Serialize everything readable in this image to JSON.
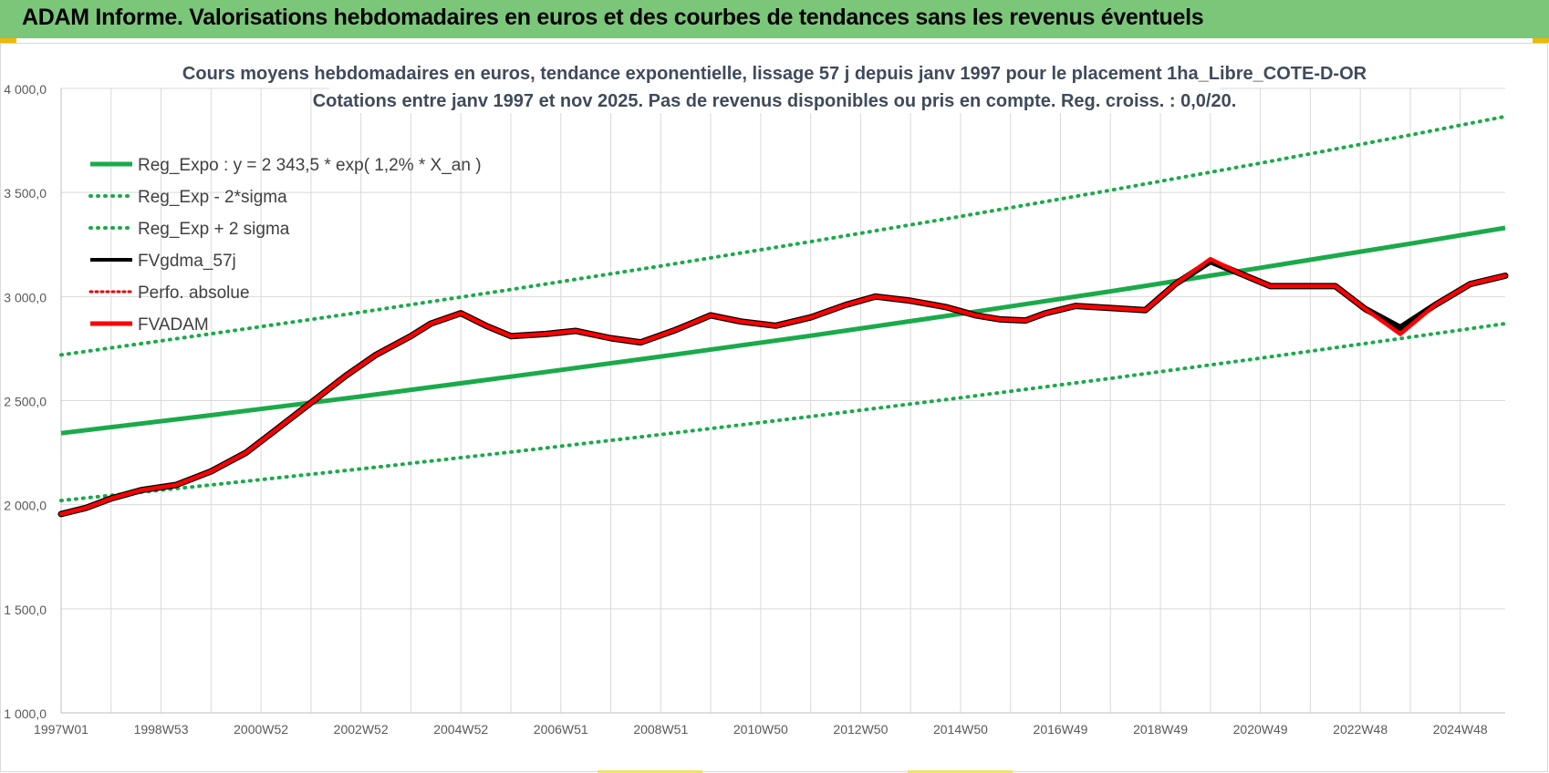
{
  "header": {
    "title": "ADAM Informe. Valorisations hebdomadaires en euros et des courbes de tendances sans les revenus éventuels"
  },
  "colors": {
    "banner": "#7bc77a",
    "trend_green": "#1aaa4a",
    "fvadam_red": "#ff0000",
    "fvgdma_black": "#000000",
    "perfo_red": "#e00000",
    "grid": "#d9d9d9",
    "accent_corner": "#f2b800"
  },
  "chart_data": {
    "type": "line",
    "title": "Cours moyens hebdomadaires en euros, tendance exponentielle, lissage 57 j depuis janv 1997  pour le placement 1ha_Libre_COTE-D-OR",
    "subtitle": "Cotations entre janv 1997 et nov 2025. Pas de revenus disponibles ou pris en compte. Reg. croiss. : 0,0/20.",
    "xlabel": "",
    "ylabel": "",
    "ylim": [
      1000,
      4000
    ],
    "xlim": [
      1997.0,
      2025.9
    ],
    "yticks": [
      1000,
      1500,
      2000,
      2500,
      3000,
      3500,
      4000
    ],
    "ytick_labels": [
      "1 000,0",
      "1 500,0",
      "2 000,0",
      "2 500,0",
      "3 000,0",
      "3 500,0",
      "4 000,0"
    ],
    "xticks": [
      1997.0,
      1999.0,
      2001.0,
      2003.0,
      2005.0,
      2007.0,
      2009.0,
      2011.0,
      2013.0,
      2015.0,
      2017.0,
      2019.0,
      2021.0,
      2023.0,
      2025.0
    ],
    "xtick_labels": [
      "1997W01",
      "1998W53",
      "2000W52",
      "2002W52",
      "2004W52",
      "2006W51",
      "2008W51",
      "2010W50",
      "2012W50",
      "2014W50",
      "2016W49",
      "2018W49",
      "2020W49",
      "2022W48",
      "2024W48"
    ],
    "legend": [
      "Reg_Expo : y = 2 343,5 * exp( 1,2% *  X_an )",
      "Reg_Exp - 2*sigma",
      "Reg_Exp + 2 sigma",
      "FVgdma_57j",
      "Perfo. absolue",
      "FVADAM"
    ],
    "legend_position": "top-left",
    "series": [
      {
        "name": "Reg_Expo : y = 2 343,5 * exp( 1,2% *  X_an )",
        "style": "solid",
        "color": "#1aaa4a",
        "x": [
          1997.0,
          2000.0,
          2003.0,
          2006.0,
          2009.0,
          2012.0,
          2015.0,
          2018.0,
          2021.0,
          2024.0,
          2025.9
        ],
        "values": [
          2343.5,
          2430.0,
          2520.0,
          2615.0,
          2712.0,
          2812.0,
          2917.0,
          3025.0,
          3138.0,
          3254.0,
          3330.0
        ]
      },
      {
        "name": "Reg_Exp - 2*sigma",
        "style": "dotted",
        "color": "#1aaa4a",
        "x": [
          1997.0,
          2000.0,
          2003.0,
          2006.0,
          2009.0,
          2012.0,
          2015.0,
          2018.0,
          2021.0,
          2024.0,
          2025.9
        ],
        "values": [
          2020.0,
          2095.0,
          2172.0,
          2253.0,
          2337.0,
          2424.0,
          2514.0,
          2607.0,
          2704.0,
          2805.0,
          2870.0
        ]
      },
      {
        "name": "Reg_Exp + 2 sigma",
        "style": "dotted",
        "color": "#1aaa4a",
        "x": [
          1997.0,
          2000.0,
          2003.0,
          2006.0,
          2009.0,
          2012.0,
          2015.0,
          2018.0,
          2021.0,
          2024.0,
          2025.9
        ],
        "values": [
          2720.0,
          2821.0,
          2925.0,
          3034.0,
          3147.0,
          3264.0,
          3385.0,
          3511.0,
          3641.0,
          3776.0,
          3865.0
        ]
      },
      {
        "name": "FVgdma_57j",
        "style": "solid",
        "color": "#000000",
        "x": [
          1997.0,
          1997.5,
          1998.0,
          1998.6,
          1999.3,
          2000.0,
          2000.7,
          2001.3,
          2002.0,
          2002.7,
          2003.3,
          2004.0,
          2004.4,
          2005.0,
          2005.5,
          2006.0,
          2006.7,
          2007.3,
          2008.0,
          2008.6,
          2009.3,
          2010.0,
          2010.6,
          2011.3,
          2012.0,
          2012.7,
          2013.3,
          2014.0,
          2014.7,
          2015.3,
          2015.8,
          2016.3,
          2016.7,
          2017.3,
          2018.0,
          2018.7,
          2019.3,
          2020.0,
          2020.6,
          2021.2,
          2021.8,
          2022.5,
          2023.1,
          2023.8,
          2024.5,
          2025.2,
          2025.9
        ],
        "values": [
          1955.0,
          1985.0,
          2030.0,
          2070.0,
          2095.0,
          2160.0,
          2250.0,
          2360.0,
          2490.0,
          2620.0,
          2720.0,
          2810.0,
          2870.0,
          2920.0,
          2860.0,
          2810.0,
          2820.0,
          2835.0,
          2800.0,
          2780.0,
          2840.0,
          2910.0,
          2880.0,
          2860.0,
          2900.0,
          2960.0,
          3000.0,
          2980.0,
          2950.0,
          2910.0,
          2890.0,
          2885.0,
          2920.0,
          2955.0,
          2945.0,
          2935.0,
          3060.0,
          3170.0,
          3110.0,
          3050.0,
          3050.0,
          3050.0,
          2940.0,
          2850.0,
          2960.0,
          3060.0,
          3100.0
        ]
      },
      {
        "name": "Perfo. absolue",
        "style": "dotted",
        "color": "#e00000",
        "x": [],
        "values": []
      },
      {
        "name": "FVADAM",
        "style": "solid",
        "color": "#ff0000",
        "x": [
          1997.0,
          1997.5,
          1998.0,
          1998.6,
          1999.3,
          2000.0,
          2000.7,
          2001.3,
          2002.0,
          2002.7,
          2003.3,
          2004.0,
          2004.4,
          2005.0,
          2005.5,
          2006.0,
          2006.7,
          2007.3,
          2008.0,
          2008.6,
          2009.3,
          2010.0,
          2010.6,
          2011.3,
          2012.0,
          2012.7,
          2013.3,
          2014.0,
          2014.7,
          2015.3,
          2015.8,
          2016.3,
          2016.7,
          2017.3,
          2018.0,
          2018.7,
          2019.3,
          2020.0,
          2020.6,
          2021.2,
          2021.8,
          2022.5,
          2023.1,
          2023.8,
          2024.5,
          2025.2,
          2025.9
        ],
        "values": [
          1955.0,
          1985.0,
          2030.0,
          2070.0,
          2095.0,
          2160.0,
          2250.0,
          2360.0,
          2490.0,
          2620.0,
          2720.0,
          2810.0,
          2870.0,
          2920.0,
          2860.0,
          2810.0,
          2820.0,
          2835.0,
          2800.0,
          2780.0,
          2840.0,
          2910.0,
          2880.0,
          2860.0,
          2900.0,
          2960.0,
          3000.0,
          2980.0,
          2950.0,
          2910.0,
          2890.0,
          2885.0,
          2920.0,
          2955.0,
          2945.0,
          2935.0,
          3060.0,
          3180.0,
          3110.0,
          3050.0,
          3050.0,
          3050.0,
          2940.0,
          2820.0,
          2960.0,
          3060.0,
          3100.0
        ]
      }
    ]
  }
}
